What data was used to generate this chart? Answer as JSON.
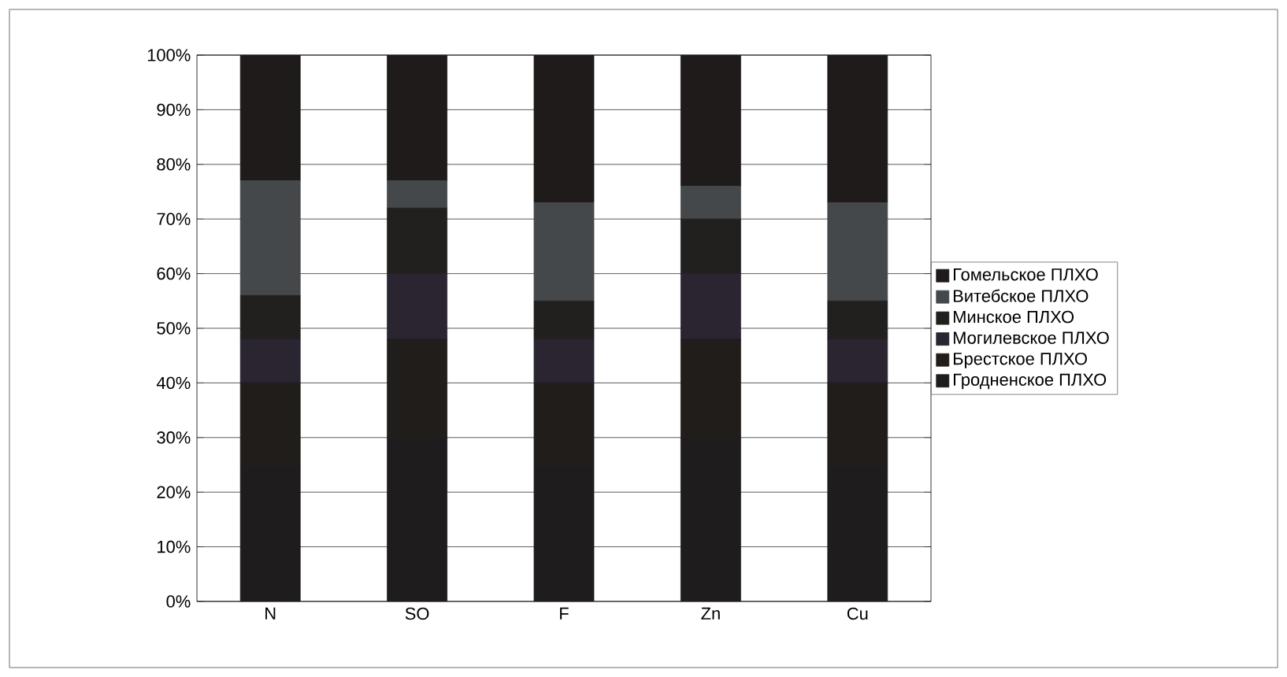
{
  "chart_data": {
    "type": "bar",
    "stacked": true,
    "categories": [
      "N",
      "SO",
      "F",
      "Zn",
      "Cu"
    ],
    "series": [
      {
        "name": "Гродненское ПЛХО",
        "color": "#1f1c1e",
        "values": [
          25,
          30,
          25,
          30,
          25
        ]
      },
      {
        "name": "Брестское ПЛХО",
        "color": "#201d1b",
        "values": [
          15,
          18,
          15,
          18,
          15
        ]
      },
      {
        "name": "Могилевское ПЛХО",
        "color": "#2a2530",
        "values": [
          8,
          12,
          8,
          12,
          8
        ]
      },
      {
        "name": "Минское ПЛХО",
        "color": "#221f1f",
        "values": [
          8,
          12,
          7,
          10,
          7
        ]
      },
      {
        "name": "Витебское ПЛХО",
        "color": "#45484a",
        "values": [
          21,
          5,
          18,
          6,
          18
        ]
      },
      {
        "name": "Гомельское ПЛХО",
        "color": "#1e1b1a",
        "values": [
          23,
          23,
          27,
          24,
          27
        ]
      }
    ],
    "ylim": [
      0,
      100
    ],
    "yticks": [
      {
        "value": 0,
        "label": "0%"
      },
      {
        "value": 10,
        "label": "10%"
      },
      {
        "value": 20,
        "label": "20%"
      },
      {
        "value": 30,
        "label": "30%"
      },
      {
        "value": 40,
        "label": "40%"
      },
      {
        "value": 50,
        "label": "50%"
      },
      {
        "value": 60,
        "label": "60%"
      },
      {
        "value": 70,
        "label": "70%"
      },
      {
        "value": 80,
        "label": "80%"
      },
      {
        "value": 90,
        "label": "90%"
      },
      {
        "value": 100,
        "label": "100%"
      }
    ],
    "grid": "y",
    "legend": "right"
  }
}
